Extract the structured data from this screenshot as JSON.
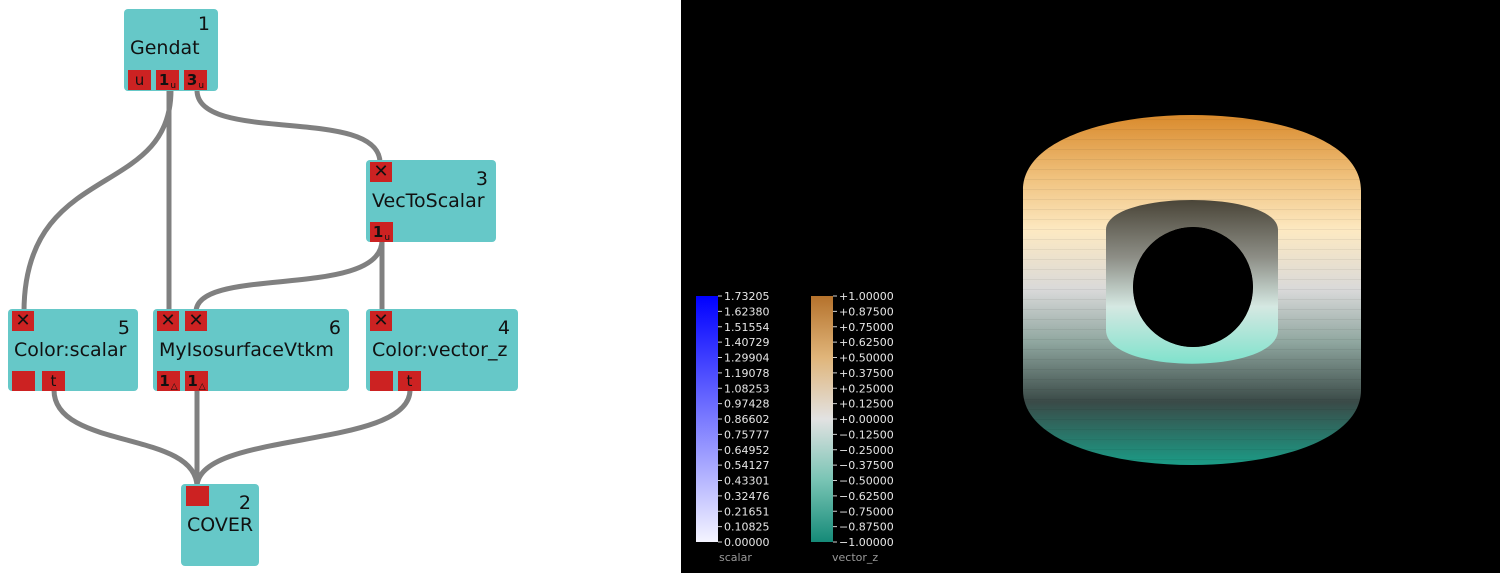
{
  "modules": {
    "gendat": {
      "number": "1",
      "name": "Gendat",
      "outputs": [
        {
          "main": "u",
          "sub": ""
        },
        {
          "main": "1",
          "sub": "u"
        },
        {
          "main": "3",
          "sub": "u"
        }
      ]
    },
    "vectoscalar": {
      "number": "3",
      "name": "VecToScalar",
      "input_mark": "✕",
      "outputs": [
        {
          "main": "1",
          "sub": "u"
        }
      ]
    },
    "color_scalar": {
      "number": "5",
      "name": "Color:scalar",
      "input_mark": "✕",
      "outputs": [
        {
          "main": "",
          "sub": ""
        },
        {
          "main": "t",
          "sub": ""
        }
      ]
    },
    "isosurface": {
      "number": "6",
      "name": "MyIsosurfaceVtkm",
      "input_marks": [
        "✕",
        "✕"
      ],
      "outputs": [
        {
          "main": "1",
          "sub": "△"
        },
        {
          "main": "1",
          "sub": "△"
        }
      ]
    },
    "color_vector_z": {
      "number": "4",
      "name": "Color:vector_z",
      "input_mark": "✕",
      "outputs": [
        {
          "main": "",
          "sub": ""
        },
        {
          "main": "t",
          "sub": ""
        }
      ]
    },
    "cover": {
      "number": "2",
      "name": "COVER"
    }
  },
  "colors": {
    "module_bg": "#66c8c8",
    "port": "#cc2222",
    "wire": "#808080",
    "render_bg": "#000000"
  },
  "legends": {
    "scalar": {
      "title": "scalar",
      "labels": [
        "1.73205",
        "1.62380",
        "1.51554",
        "1.40729",
        "1.29904",
        "1.19078",
        "1.08253",
        "0.97428",
        "0.86602",
        "0.75777",
        "0.64952",
        "0.54127",
        "0.43301",
        "0.32476",
        "0.21651",
        "0.10825",
        "0.00000"
      ],
      "color_top": "#0000ff",
      "color_bottom": "#f4f4ff"
    },
    "vector_z": {
      "title": "vector_z",
      "labels": [
        "+1.00000",
        "+0.87500",
        "+0.75000",
        "+0.62500",
        "+0.50000",
        "+0.37500",
        "+0.25000",
        "+0.12500",
        "+0.00000",
        "−0.12500",
        "−0.25000",
        "−0.37500",
        "−0.50000",
        "−0.62500",
        "−0.75000",
        "−0.87500",
        "−1.00000"
      ],
      "color_top": "#b5722c",
      "color_mid": "#e2e2e2",
      "color_bottom": "#158a78"
    }
  }
}
